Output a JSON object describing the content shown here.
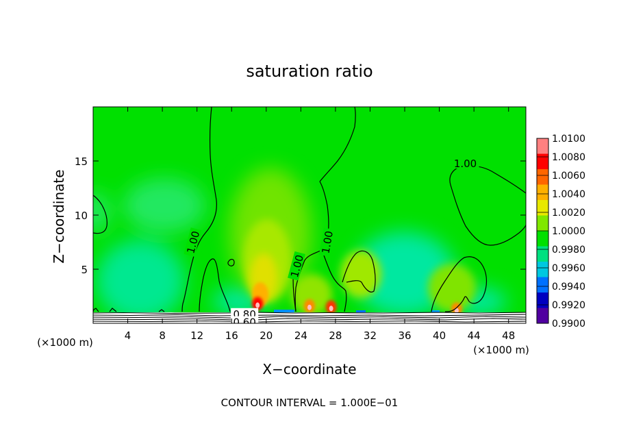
{
  "chart_data": {
    "type": "heatmap",
    "title": "saturation ratio",
    "xlabel": "X−coordinate",
    "ylabel": "Z−coordinate",
    "x_unit_left": "(×1000 m)",
    "x_unit_right": "(×1000 m)",
    "footer": "CONTOUR INTERVAL = 1.000E−01",
    "xlim": [
      0,
      50
    ],
    "ylim": [
      0,
      20
    ],
    "x_ticks": [
      4,
      8,
      12,
      16,
      20,
      24,
      28,
      32,
      36,
      40,
      44,
      48
    ],
    "y_ticks": [
      5,
      10,
      15
    ],
    "colorbar": {
      "min": 0.99,
      "max": 1.01,
      "labels": [
        "1.0100",
        "1.0080",
        "1.0060",
        "1.0040",
        "1.0020",
        "1.0000",
        "0.9980",
        "0.9960",
        "0.9940",
        "0.9920",
        "0.9900"
      ],
      "colors": [
        "#ff8080",
        "#ff0000",
        "#ff6600",
        "#ffb000",
        "#e8e800",
        "#80e800",
        "#00e000",
        "#00e080",
        "#00c8e0",
        "#0070ff",
        "#0000c0",
        "#5000a0"
      ]
    },
    "contour_labels": [
      {
        "text": "1.00",
        "x": 11.5,
        "z": 7.5,
        "angle": -75
      },
      {
        "text": "1.00",
        "x": 23.5,
        "z": 5.3,
        "angle": -75
      },
      {
        "text": "1.00",
        "x": 27.0,
        "z": 7.5,
        "angle": -80
      },
      {
        "text": "1.00",
        "x": 43.0,
        "z": 14.8,
        "angle": 0
      },
      {
        "text": "0.80",
        "x": 17.5,
        "z": 0.9,
        "angle": 0
      },
      {
        "text": "0.60",
        "x": 17.5,
        "z": 0.15,
        "angle": 0
      }
    ],
    "hotspots": [
      {
        "x": 19.0,
        "z": 1.8,
        "value": 1.008
      },
      {
        "x": 25.0,
        "z": 1.6,
        "value": 1.004
      },
      {
        "x": 27.5,
        "z": 1.5,
        "value": 1.006
      },
      {
        "x": 42.0,
        "z": 1.3,
        "value": 1.004
      }
    ]
  }
}
